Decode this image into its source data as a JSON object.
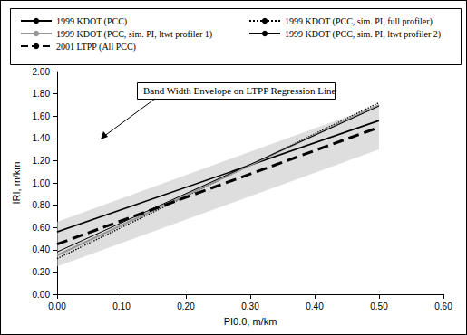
{
  "chart_data": {
    "type": "line",
    "x_label": "PI0.0, m/km",
    "y_label": "IRI, m/km",
    "annotation": "Band Width Envelope on LTPP Regression Line",
    "x": [
      0,
      0.5
    ],
    "series": [
      {
        "name": "1999 KDOT (PCC)",
        "color": "#000000",
        "line_style": "solid",
        "values": [
          0.56,
          1.56
        ]
      },
      {
        "name": "1999 KDOT (PCC, sim. PI, full profiler)",
        "color": "#000000",
        "line_style": "dotted",
        "values": [
          0.32,
          1.72
        ]
      },
      {
        "name": "1999 KDOT (PCC, sim. PI, ltwt profiler 1)",
        "color": "#999999",
        "line_style": "solid",
        "values": [
          0.35,
          1.7
        ]
      },
      {
        "name": "1999 KDOT (PCC, sim. PI, ltwt profiler 2)",
        "color": "#000000",
        "line_style": "solid",
        "values": [
          0.38,
          1.69
        ]
      },
      {
        "name": "2001 LTPP (All PCC)",
        "color": "#000000",
        "line_style": "dashed",
        "values": [
          0.45,
          1.5
        ]
      }
    ],
    "band": {
      "color": "#c8c8c8",
      "lower": [
        0.25,
        1.3
      ],
      "upper": [
        0.65,
        1.7
      ]
    },
    "xlim": [
      0,
      0.6
    ],
    "ylim": [
      0,
      2.0
    ],
    "xticks": [
      {
        "value": 0,
        "label": "0.00"
      },
      {
        "value": 0.1,
        "label": "0.10"
      },
      {
        "value": 0.2,
        "label": "0.20"
      },
      {
        "value": 0.3,
        "label": "0.30"
      },
      {
        "value": 0.4,
        "label": "0.40"
      },
      {
        "value": 0.5,
        "label": "0.50"
      },
      {
        "value": 0.6,
        "label": "0.60"
      }
    ],
    "yticks": [
      {
        "value": 0,
        "label": "0.00"
      },
      {
        "value": 0.2,
        "label": "0.20"
      },
      {
        "value": 0.4,
        "label": "0.40"
      },
      {
        "value": 0.6,
        "label": "0.60"
      },
      {
        "value": 0.8,
        "label": "0.80"
      },
      {
        "value": 1.0,
        "label": "1.00"
      },
      {
        "value": 1.2,
        "label": "1.20"
      },
      {
        "value": 1.4,
        "label": "1.40"
      },
      {
        "value": 1.6,
        "label": "1.60"
      },
      {
        "value": 1.8,
        "label": "1.80"
      },
      {
        "value": 2.0,
        "label": "2.00"
      }
    ],
    "grid": false,
    "legend": "top"
  }
}
